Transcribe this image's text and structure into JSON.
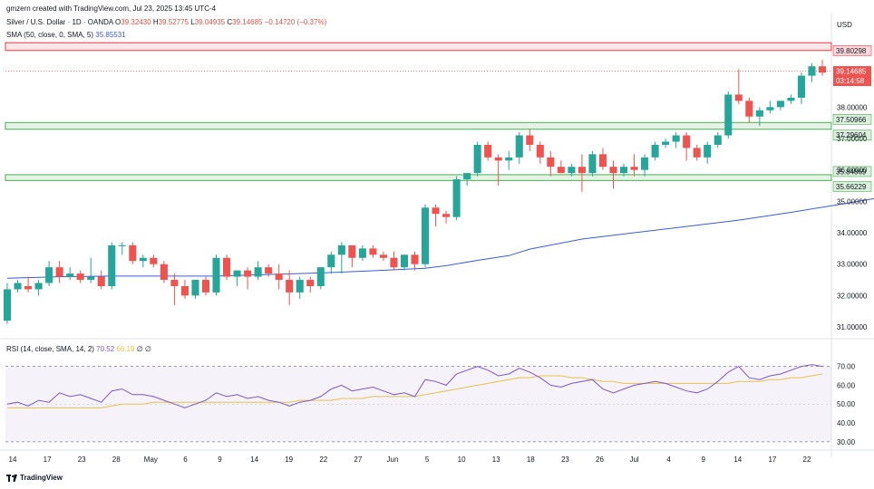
{
  "header": {
    "attribution": "gmzern created with TradingView.com, Jul 23, 2025 13:45 UTC-4",
    "symbol": "Silver / U.S. Dollar · 1D · OANDA",
    "ohlc": {
      "o_label": "O",
      "o": "39.32430",
      "h_label": "H",
      "h": "39.52775",
      "l_label": "L",
      "l": "39.04935",
      "c_label": "C",
      "c": "39.14685",
      "change": "−0.14720 (−0.37%)"
    },
    "sma_label": "SMA (50, close, 0, SMA, 5)",
    "sma_value": "35.85531"
  },
  "price_axis": {
    "currency": "USD",
    "ticks": [
      "38.00000",
      "37.00000",
      "36.00000",
      "35.00000",
      "34.00000",
      "33.00000",
      "32.00000",
      "31.00000"
    ],
    "tick_values": [
      38,
      37,
      36,
      35,
      34,
      33,
      32,
      31
    ],
    "labels": [
      {
        "text": "39.80298",
        "value": 39.80298,
        "kind": "zone"
      },
      {
        "text": "39.14685",
        "sub": "03:14:58",
        "value": 39.14685,
        "kind": "last"
      },
      {
        "text": "37.50966",
        "value": 37.50966,
        "kind": "zone"
      },
      {
        "text": "37.29604",
        "value": 37.29604,
        "kind": "zone"
      },
      {
        "text": "35.84869",
        "value": 35.84869,
        "kind": "zone"
      },
      {
        "text": "35.66229",
        "value": 35.66229,
        "kind": "zone"
      }
    ]
  },
  "rsi": {
    "label": "RSI (14, close, SMA, 14, 2)",
    "rsi_value": "70.52",
    "sma_value": "66.19",
    "extra1": "∅",
    "extra2": "∅",
    "ticks": [
      "70.00",
      "60.00",
      "50.00",
      "40.00",
      "30.00"
    ],
    "tick_values": [
      70,
      60,
      50,
      40,
      30
    ]
  },
  "time_axis": [
    "14",
    "17",
    "23",
    "28",
    "May",
    "6",
    "9",
    "14",
    "19",
    "22",
    "27",
    "Jun",
    "5",
    "10",
    "13",
    "18",
    "23",
    "26",
    "Jul",
    "4",
    "9",
    "14",
    "17",
    "22"
  ],
  "brand": "TradingView",
  "colors": {
    "up": "#26a69a",
    "down": "#ef5350",
    "sma": "#3d5bd6",
    "rsi": "#7e57c2",
    "rsi_sma": "#e6c24c",
    "zone_red": "#f23645",
    "zone_green": "#4caf50"
  },
  "chart_data": [
    {
      "type": "candlestick",
      "title": "Silver / U.S. Dollar · 1D · OANDA",
      "ylim": [
        30.8,
        40.2
      ],
      "ohlc": [
        [
          31.2,
          32.4,
          31.1,
          32.2
        ],
        [
          32.2,
          32.5,
          32.1,
          32.4
        ],
        [
          32.3,
          32.6,
          32.1,
          32.2
        ],
        [
          32.2,
          32.5,
          32.0,
          32.4
        ],
        [
          32.4,
          33.1,
          32.3,
          32.9
        ],
        [
          32.9,
          33.1,
          32.4,
          32.6
        ],
        [
          32.6,
          32.9,
          32.5,
          32.7
        ],
        [
          32.7,
          32.8,
          32.4,
          32.5
        ],
        [
          32.5,
          33.2,
          32.4,
          32.6
        ],
        [
          32.6,
          32.8,
          32.2,
          32.3
        ],
        [
          32.3,
          33.7,
          32.2,
          33.6
        ],
        [
          33.6,
          33.7,
          33.3,
          33.6
        ],
        [
          33.6,
          33.7,
          33.0,
          33.1
        ],
        [
          33.1,
          33.3,
          32.9,
          33.2
        ],
        [
          33.2,
          33.3,
          32.9,
          33.0
        ],
        [
          33.0,
          33.1,
          32.4,
          32.5
        ],
        [
          32.5,
          32.7,
          31.7,
          32.3
        ],
        [
          32.3,
          32.5,
          31.9,
          32.0
        ],
        [
          32.0,
          32.5,
          31.9,
          32.5
        ],
        [
          32.5,
          32.6,
          32.0,
          32.1
        ],
        [
          32.1,
          33.3,
          32.0,
          33.2
        ],
        [
          33.2,
          33.3,
          32.5,
          32.6
        ],
        [
          32.6,
          32.8,
          32.3,
          32.8
        ],
        [
          32.8,
          32.9,
          32.2,
          32.6
        ],
        [
          32.6,
          33.1,
          32.5,
          32.9
        ],
        [
          32.9,
          33.0,
          32.6,
          32.7
        ],
        [
          32.7,
          33.0,
          32.2,
          32.5
        ],
        [
          32.5,
          32.8,
          31.7,
          32.1
        ],
        [
          32.1,
          32.6,
          31.9,
          32.5
        ],
        [
          32.5,
          32.6,
          32.1,
          32.3
        ],
        [
          32.3,
          32.9,
          32.2,
          32.9
        ],
        [
          32.9,
          33.4,
          32.7,
          33.3
        ],
        [
          33.3,
          33.7,
          32.7,
          33.6
        ],
        [
          33.6,
          33.6,
          32.9,
          33.2
        ],
        [
          33.2,
          33.6,
          33.1,
          33.5
        ],
        [
          33.5,
          33.6,
          33.2,
          33.3
        ],
        [
          33.3,
          33.4,
          33.1,
          33.2
        ],
        [
          33.2,
          33.4,
          32.8,
          32.9
        ],
        [
          32.9,
          33.3,
          32.8,
          33.3
        ],
        [
          33.3,
          33.4,
          32.8,
          33.0
        ],
        [
          33.0,
          34.9,
          32.9,
          34.8
        ],
        [
          34.8,
          34.9,
          34.2,
          34.6
        ],
        [
          34.6,
          34.7,
          34.3,
          34.5
        ],
        [
          34.5,
          35.8,
          34.4,
          35.7
        ],
        [
          35.7,
          35.9,
          35.5,
          35.9
        ],
        [
          35.9,
          36.9,
          35.8,
          36.8
        ],
        [
          36.8,
          36.9,
          36.3,
          36.4
        ],
        [
          36.4,
          36.5,
          35.5,
          36.3
        ],
        [
          36.3,
          36.6,
          36.0,
          36.4
        ],
        [
          36.4,
          37.2,
          36.2,
          37.1
        ],
        [
          37.1,
          37.3,
          36.6,
          36.8
        ],
        [
          36.8,
          36.9,
          36.2,
          36.4
        ],
        [
          36.4,
          36.6,
          35.8,
          36.1
        ],
        [
          36.1,
          36.3,
          35.9,
          35.9
        ],
        [
          35.9,
          36.2,
          35.8,
          36.1
        ],
        [
          36.1,
          36.5,
          35.3,
          35.9
        ],
        [
          35.9,
          36.6,
          35.8,
          36.5
        ],
        [
          36.5,
          36.7,
          36.0,
          36.1
        ],
        [
          36.1,
          36.3,
          35.4,
          35.9
        ],
        [
          35.9,
          36.2,
          35.8,
          36.1
        ],
        [
          36.1,
          36.5,
          35.8,
          36.0
        ],
        [
          36.0,
          36.5,
          35.8,
          36.4
        ],
        [
          36.4,
          36.9,
          36.3,
          36.8
        ],
        [
          36.8,
          37.0,
          36.7,
          36.9
        ],
        [
          36.9,
          37.2,
          36.7,
          37.1
        ],
        [
          37.1,
          37.2,
          36.3,
          36.7
        ],
        [
          36.7,
          36.8,
          36.3,
          36.4
        ],
        [
          36.4,
          36.9,
          36.2,
          36.8
        ],
        [
          36.8,
          37.2,
          36.7,
          37.1
        ],
        [
          37.1,
          38.5,
          37.0,
          38.4
        ],
        [
          38.4,
          39.2,
          38.1,
          38.2
        ],
        [
          38.2,
          38.3,
          37.5,
          37.7
        ],
        [
          37.7,
          38.0,
          37.4,
          37.9
        ],
        [
          37.9,
          38.2,
          37.8,
          38.0
        ],
        [
          38.0,
          38.2,
          37.9,
          38.2
        ],
        [
          38.2,
          38.4,
          38.1,
          38.3
        ],
        [
          38.3,
          39.1,
          38.1,
          39.0
        ],
        [
          39.0,
          39.4,
          38.8,
          39.3
        ],
        [
          39.3,
          39.5,
          39.0,
          39.1
        ]
      ],
      "sma": [
        [
          0,
          32.55
        ],
        [
          5,
          32.6
        ],
        [
          10,
          32.62
        ],
        [
          15,
          32.62
        ],
        [
          20,
          32.62
        ],
        [
          25,
          32.67
        ],
        [
          30,
          32.72
        ],
        [
          35,
          32.79
        ],
        [
          40,
          32.87
        ],
        [
          42,
          32.95
        ],
        [
          45,
          33.12
        ],
        [
          48,
          33.27
        ],
        [
          50,
          33.48
        ],
        [
          55,
          33.8
        ],
        [
          60,
          34.0
        ],
        [
          65,
          34.2
        ],
        [
          70,
          34.4
        ],
        [
          75,
          34.65
        ],
        [
          80,
          34.92
        ],
        [
          85,
          35.2
        ],
        [
          89,
          35.55
        ],
        [
          91,
          35.85
        ]
      ]
    },
    {
      "type": "line",
      "title": "RSI (14, close, SMA, 14, 2)",
      "ylim": [
        28,
        78
      ],
      "series": [
        {
          "name": "RSI",
          "values": [
            50,
            51,
            49,
            52,
            51,
            56,
            54,
            55,
            53,
            51,
            57,
            58,
            55,
            55,
            54,
            52,
            50,
            48,
            50,
            52,
            56,
            54,
            55,
            53,
            54,
            52,
            51,
            49,
            51,
            52,
            54,
            58,
            60,
            57,
            58,
            59,
            57,
            55,
            56,
            54,
            63,
            62,
            60,
            66,
            68,
            70,
            68,
            65,
            66,
            69,
            67,
            64,
            60,
            59,
            61,
            62,
            63,
            58,
            56,
            58,
            60,
            61,
            62,
            61,
            59,
            57,
            56,
            58,
            62,
            67,
            70,
            64,
            63,
            65,
            66,
            68,
            70,
            71,
            70
          ]
        },
        {
          "name": "RSI SMA",
          "values": [
            48,
            48,
            48,
            48,
            48,
            48,
            48,
            48,
            48,
            48,
            49,
            50,
            50,
            50,
            51,
            51,
            51,
            51,
            51,
            51,
            51,
            51,
            51,
            51,
            51,
            51,
            51,
            51,
            52,
            52,
            52,
            52,
            53,
            53,
            53,
            54,
            54,
            54,
            54,
            54,
            55,
            56,
            57,
            58,
            59,
            60,
            61,
            62,
            63,
            64,
            64,
            65,
            65,
            65,
            64,
            64,
            63,
            62,
            62,
            61,
            61,
            61,
            61,
            61,
            61,
            61,
            61,
            61,
            61,
            61,
            62,
            62,
            62,
            63,
            63,
            64,
            64,
            65,
            66
          ]
        }
      ]
    }
  ]
}
